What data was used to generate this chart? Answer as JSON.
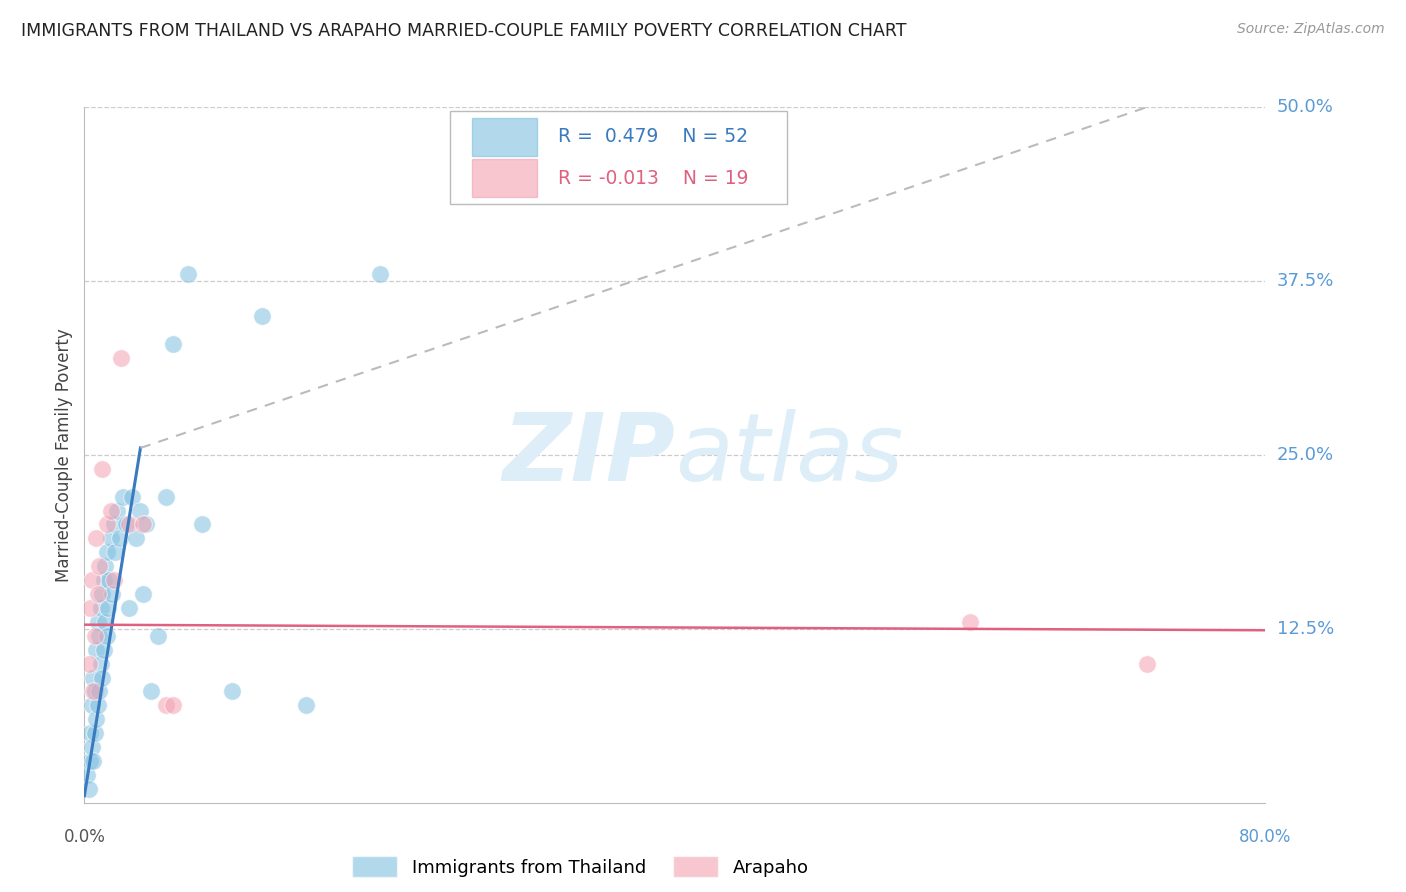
{
  "title": "IMMIGRANTS FROM THAILAND VS ARAPAHO MARRIED-COUPLE FAMILY POVERTY CORRELATION CHART",
  "source": "Source: ZipAtlas.com",
  "ylabel": "Married-Couple Family Poverty",
  "xlim": [
    0.0,
    0.8
  ],
  "ylim": [
    0.0,
    0.5
  ],
  "yticks": [
    0.125,
    0.25,
    0.375,
    0.5
  ],
  "ytick_labels": [
    "12.5%",
    "25.0%",
    "37.5%",
    "50.0%"
  ],
  "blue_R": 0.479,
  "blue_N": 52,
  "pink_R": -0.013,
  "pink_N": 19,
  "blue_color": "#7fbfdf",
  "pink_color": "#f4a0b0",
  "blue_line_color": "#3a7abf",
  "pink_line_color": "#e06080",
  "blue_scatter_x": [
    0.002,
    0.003,
    0.004,
    0.004,
    0.005,
    0.005,
    0.006,
    0.006,
    0.007,
    0.007,
    0.008,
    0.008,
    0.009,
    0.009,
    0.01,
    0.01,
    0.011,
    0.011,
    0.012,
    0.012,
    0.013,
    0.013,
    0.014,
    0.014,
    0.015,
    0.015,
    0.016,
    0.017,
    0.018,
    0.019,
    0.02,
    0.021,
    0.022,
    0.024,
    0.026,
    0.028,
    0.03,
    0.032,
    0.035,
    0.038,
    0.04,
    0.042,
    0.045,
    0.05,
    0.055,
    0.06,
    0.07,
    0.08,
    0.1,
    0.12,
    0.15,
    0.2
  ],
  "blue_scatter_y": [
    0.02,
    0.01,
    0.03,
    0.05,
    0.04,
    0.07,
    0.03,
    0.09,
    0.05,
    0.08,
    0.06,
    0.11,
    0.07,
    0.13,
    0.08,
    0.12,
    0.1,
    0.14,
    0.09,
    0.15,
    0.11,
    0.16,
    0.13,
    0.17,
    0.12,
    0.18,
    0.14,
    0.16,
    0.19,
    0.15,
    0.2,
    0.18,
    0.21,
    0.19,
    0.22,
    0.2,
    0.14,
    0.22,
    0.19,
    0.21,
    0.15,
    0.2,
    0.08,
    0.12,
    0.22,
    0.33,
    0.38,
    0.2,
    0.08,
    0.35,
    0.07,
    0.38
  ],
  "pink_scatter_x": [
    0.003,
    0.004,
    0.005,
    0.006,
    0.007,
    0.008,
    0.009,
    0.01,
    0.012,
    0.015,
    0.018,
    0.02,
    0.025,
    0.03,
    0.04,
    0.055,
    0.06,
    0.6,
    0.72
  ],
  "pink_scatter_y": [
    0.1,
    0.14,
    0.16,
    0.08,
    0.12,
    0.19,
    0.15,
    0.17,
    0.24,
    0.2,
    0.21,
    0.16,
    0.32,
    0.2,
    0.2,
    0.07,
    0.07,
    0.13,
    0.1
  ],
  "trend_blue_x0": 0.0,
  "trend_blue_y0": 0.005,
  "trend_blue_x1": 0.038,
  "trend_blue_y1": 0.255,
  "trend_gray_x0": 0.038,
  "trend_gray_y0": 0.255,
  "trend_gray_x1": 0.72,
  "trend_gray_y1": 0.5,
  "trend_pink_x0": 0.0,
  "trend_pink_y0": 0.128,
  "trend_pink_x1": 0.8,
  "trend_pink_y1": 0.124,
  "watermark_zip": "ZIP",
  "watermark_atlas": "atlas",
  "watermark_color": "#ddeef8",
  "background_color": "#ffffff",
  "grid_color": "#cccccc",
  "ytick_color": "#5b9bd5"
}
